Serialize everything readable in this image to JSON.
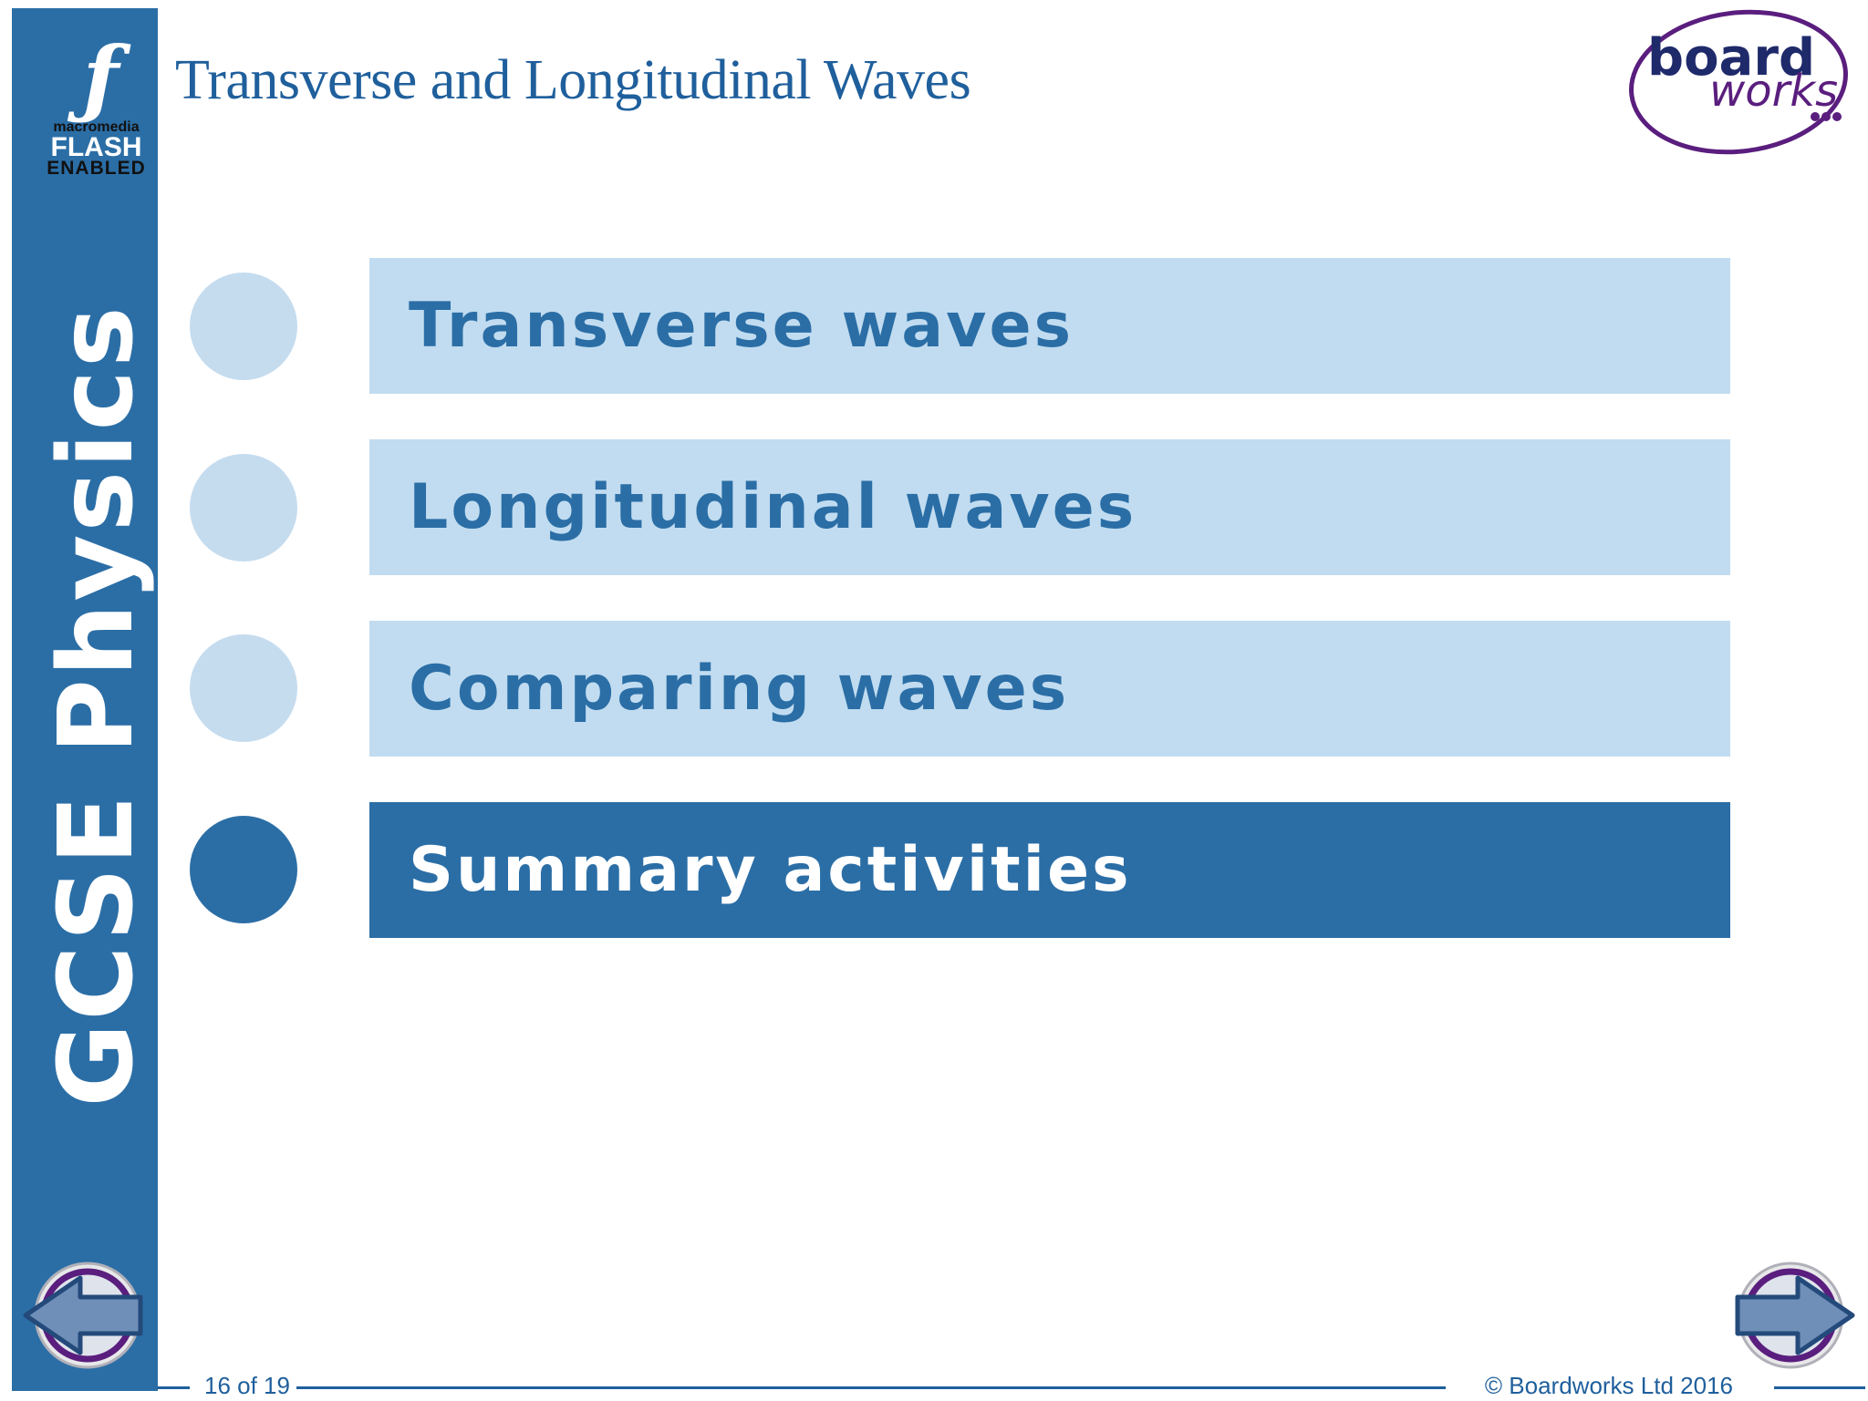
{
  "header": {
    "title": "Transverse and Longitudinal Waves"
  },
  "sidebar": {
    "flash_badge": {
      "brand": "macromedia",
      "product": "FLASH",
      "status": "ENABLED",
      "icon": "flash-f-icon"
    },
    "course_title": "GCSE Physics"
  },
  "logo": {
    "line1": "board",
    "line2": "works",
    "colors": {
      "text": "#1f2a6b",
      "accent": "#5a1e7e"
    }
  },
  "menu": {
    "items": [
      {
        "label": "Transverse waves",
        "active": false
      },
      {
        "label": "Longitudinal waves",
        "active": false
      },
      {
        "label": "Comparing waves",
        "active": false
      },
      {
        "label": "Summary activities",
        "active": true
      }
    ]
  },
  "navigation": {
    "prev_icon": "left-arrow-icon",
    "next_icon": "right-arrow-icon"
  },
  "footer": {
    "slide_counter": "16 of 19",
    "copyright": "© Boardworks Ltd 2016"
  },
  "colors": {
    "primary": "#2b6ea6",
    "light": "#c1dcf0",
    "title": "#1f5f9c",
    "ring": "#5a1e7e"
  }
}
